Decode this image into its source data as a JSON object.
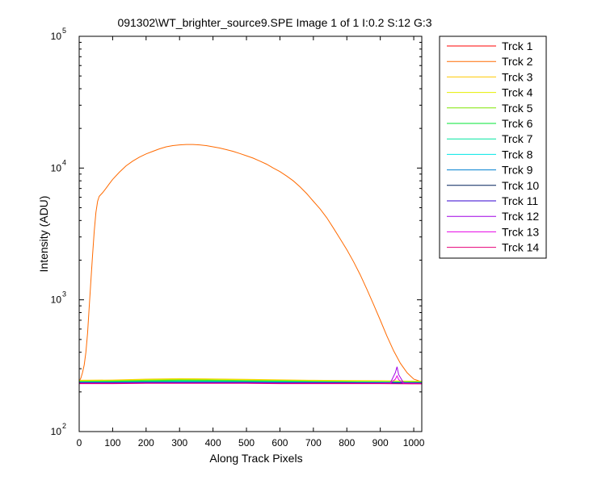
{
  "chart_data": {
    "type": "line",
    "title": "091302\\WT_brighter_source9.SPE  Image 1 of 1  I:0.2  S:12  G:3",
    "xlabel": "Along Track Pixels",
    "ylabel": "Intensity (ADU)",
    "xlim": [
      0,
      1024
    ],
    "ylim": [
      100,
      100000
    ],
    "yscale": "log",
    "x_ticks": [
      0,
      100,
      200,
      300,
      400,
      500,
      600,
      700,
      800,
      900,
      1000
    ],
    "y_ticks": [
      {
        "base": "10",
        "exp": "2",
        "value": 100
      },
      {
        "base": "10",
        "exp": "3",
        "value": 1000
      },
      {
        "base": "10",
        "exp": "4",
        "value": 10000
      },
      {
        "base": "10",
        "exp": "5",
        "value": 100000
      }
    ],
    "grid": false,
    "legend_position": "outside-top-right",
    "series": [
      {
        "name": "Trck 1",
        "color": "#ff0000",
        "x": [
          0,
          100,
          200,
          300,
          400,
          500,
          600,
          700,
          800,
          900,
          1024
        ],
        "y": [
          240,
          238,
          238,
          239,
          239,
          239,
          238,
          238,
          238,
          238,
          237
        ]
      },
      {
        "name": "Trck 2",
        "color": "#ff6a00",
        "x": [
          0,
          5,
          10,
          15,
          20,
          25,
          30,
          35,
          40,
          45,
          50,
          55,
          60,
          70,
          80,
          90,
          100,
          120,
          140,
          160,
          180,
          200,
          220,
          240,
          260,
          280,
          300,
          320,
          340,
          360,
          380,
          400,
          420,
          440,
          460,
          480,
          500,
          520,
          540,
          560,
          580,
          600,
          620,
          640,
          660,
          680,
          700,
          720,
          740,
          760,
          780,
          800,
          820,
          840,
          860,
          880,
          900,
          920,
          940,
          960,
          980,
          1000,
          1010,
          1020,
          1024
        ],
        "y": [
          240,
          255,
          280,
          320,
          400,
          560,
          880,
          1400,
          2200,
          3300,
          4600,
          5600,
          6100,
          6500,
          7000,
          7600,
          8200,
          9300,
          10400,
          11300,
          12100,
          12800,
          13400,
          14000,
          14500,
          14800,
          15000,
          15100,
          15100,
          15000,
          14800,
          14500,
          14200,
          13800,
          13400,
          12900,
          12400,
          11900,
          11300,
          10700,
          10000,
          9400,
          8700,
          8000,
          7200,
          6400,
          5600,
          4900,
          4200,
          3500,
          2900,
          2400,
          1950,
          1550,
          1200,
          920,
          700,
          530,
          410,
          330,
          280,
          250,
          245,
          240,
          240
        ]
      },
      {
        "name": "Trck 3",
        "color": "#ffc800",
        "x": [
          0,
          100,
          200,
          300,
          400,
          500,
          600,
          700,
          800,
          900,
          1024
        ],
        "y": [
          245,
          246,
          250,
          252,
          251,
          249,
          247,
          245,
          244,
          243,
          241
        ]
      },
      {
        "name": "Trck 4",
        "color": "#e6ee00",
        "x": [
          0,
          100,
          200,
          300,
          400,
          500,
          600,
          700,
          800,
          900,
          1024
        ],
        "y": [
          243,
          244,
          248,
          250,
          249,
          247,
          245,
          243,
          242,
          241,
          239
        ]
      },
      {
        "name": "Trck 5",
        "color": "#7fe600",
        "x": [
          0,
          100,
          200,
          300,
          400,
          500,
          600,
          700,
          800,
          900,
          1024
        ],
        "y": [
          241,
          242,
          245,
          247,
          246,
          244,
          243,
          241,
          240,
          239,
          238
        ]
      },
      {
        "name": "Trck 6",
        "color": "#00e633",
        "x": [
          0,
          100,
          200,
          300,
          400,
          500,
          600,
          700,
          800,
          900,
          1024
        ],
        "y": [
          239,
          240,
          242,
          244,
          243,
          242,
          241,
          239,
          238,
          238,
          237
        ]
      },
      {
        "name": "Trck 7",
        "color": "#00e6a0",
        "x": [
          0,
          100,
          200,
          300,
          400,
          500,
          600,
          700,
          800,
          900,
          1024
        ],
        "y": [
          238,
          238,
          240,
          241,
          241,
          240,
          239,
          238,
          237,
          237,
          236
        ]
      },
      {
        "name": "Trck 8",
        "color": "#00e6e6",
        "x": [
          0,
          100,
          200,
          300,
          400,
          500,
          600,
          700,
          800,
          900,
          1024
        ],
        "y": [
          237,
          237,
          238,
          239,
          239,
          238,
          238,
          237,
          236,
          236,
          235
        ]
      },
      {
        "name": "Trck 9",
        "color": "#0080d0",
        "x": [
          0,
          100,
          200,
          300,
          400,
          500,
          600,
          700,
          800,
          900,
          1024
        ],
        "y": [
          236,
          236,
          237,
          237,
          237,
          237,
          236,
          236,
          235,
          235,
          234
        ]
      },
      {
        "name": "Trck 10",
        "color": "#00205a",
        "x": [
          0,
          100,
          200,
          300,
          400,
          500,
          600,
          700,
          800,
          900,
          1024
        ],
        "y": [
          235,
          235,
          236,
          236,
          236,
          236,
          235,
          235,
          235,
          234,
          234
        ]
      },
      {
        "name": "Trck 11",
        "color": "#3000d0",
        "x": [
          0,
          100,
          200,
          300,
          400,
          500,
          600,
          700,
          800,
          900,
          1024
        ],
        "y": [
          234,
          234,
          235,
          235,
          235,
          235,
          234,
          234,
          234,
          234,
          233
        ]
      },
      {
        "name": "Trck 12",
        "color": "#a000e6",
        "x": [
          0,
          100,
          200,
          300,
          400,
          500,
          600,
          700,
          800,
          900,
          930,
          945,
          950,
          955,
          970,
          1024
        ],
        "y": [
          233,
          233,
          234,
          234,
          234,
          234,
          233,
          233,
          233,
          233,
          234,
          280,
          310,
          270,
          234,
          232
        ]
      },
      {
        "name": "Trck 13",
        "color": "#e600e6",
        "x": [
          0,
          100,
          200,
          300,
          400,
          500,
          600,
          700,
          800,
          900,
          930,
          945,
          950,
          955,
          970,
          1024
        ],
        "y": [
          232,
          232,
          233,
          233,
          233,
          233,
          232,
          232,
          232,
          232,
          233,
          250,
          265,
          248,
          232,
          231
        ]
      },
      {
        "name": "Trck 14",
        "color": "#e6007a",
        "x": [
          0,
          100,
          200,
          300,
          400,
          500,
          600,
          700,
          800,
          900,
          1024
        ],
        "y": [
          231,
          231,
          232,
          232,
          232,
          232,
          231,
          231,
          231,
          231,
          230
        ]
      }
    ]
  }
}
